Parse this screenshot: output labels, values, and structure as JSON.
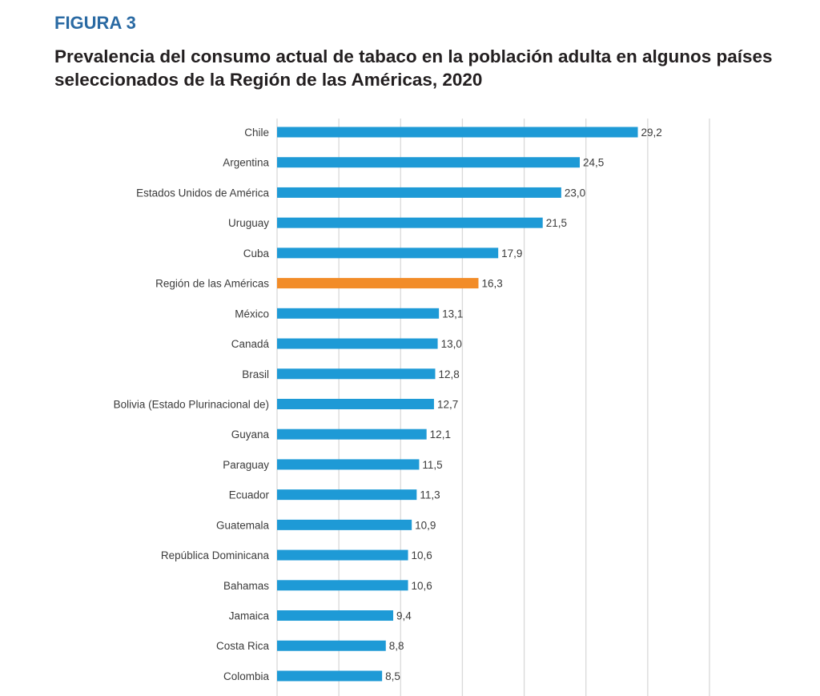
{
  "figure_label": "FIGURA 3",
  "chart_data": {
    "type": "bar",
    "orientation": "horizontal",
    "title": "Prevalencia del consumo actual de tabaco en la población adulta en algunos países seleccionados de la Región de las Américas, 2020",
    "xlabel": "",
    "ylabel": "",
    "xlim": [
      0,
      35
    ],
    "grid_step": 5,
    "grid": true,
    "categories": [
      "Chile",
      "Argentina",
      "Estados Unidos de América",
      "Uruguay",
      "Cuba",
      "Región de las Américas",
      "México",
      "Canadá",
      "Brasil",
      "Bolivia (Estado Plurinacional de)",
      "Guyana",
      "Paraguay",
      "Ecuador",
      "Guatemala",
      "República Dominicana",
      "Bahamas",
      "Jamaica",
      "Costa Rica",
      "Colombia"
    ],
    "values": [
      29.2,
      24.5,
      23.0,
      21.5,
      17.9,
      16.3,
      13.1,
      13.0,
      12.8,
      12.7,
      12.1,
      11.5,
      11.3,
      10.9,
      10.6,
      10.6,
      9.4,
      8.8,
      8.5
    ],
    "labels": [
      "29,2",
      "24,5",
      "23,0",
      "21,5",
      "17,9",
      "16,3",
      "13,1",
      "13,0",
      "12,8",
      "12,7",
      "12,1",
      "11,5",
      "11,3",
      "10,9",
      "10,6",
      "10,6",
      "9,4",
      "8,8",
      "8,5"
    ],
    "highlight_index": 5,
    "colors": {
      "bar": "#1e9ad6",
      "highlight": "#f28c28",
      "grid": "#d9d9d9"
    }
  }
}
